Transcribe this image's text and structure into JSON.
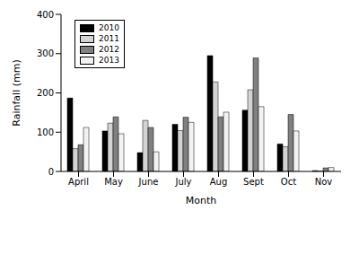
{
  "chart_data": {
    "type": "bar",
    "x_label": "Month",
    "y_label": "Rainfall (mm)",
    "categories": [
      "April",
      "May",
      "June",
      "July",
      "Aug",
      "Sept",
      "Oct",
      "Nov"
    ],
    "series": [
      {
        "name": "2010",
        "color": "#000000",
        "values": [
          187,
          103,
          48,
          120,
          295,
          156,
          70,
          2
        ]
      },
      {
        "name": "2011",
        "color": "#d3d3d3",
        "values": [
          58,
          123,
          130,
          104,
          228,
          208,
          63,
          1
        ]
      },
      {
        "name": "2012",
        "color": "#808080",
        "values": [
          68,
          139,
          112,
          138,
          139,
          289,
          145,
          9
        ]
      },
      {
        "name": "2013",
        "color": "#f2f2f2",
        "values": [
          112,
          96,
          50,
          125,
          151,
          165,
          103,
          10
        ]
      }
    ],
    "ylim": [
      0,
      400
    ],
    "yticks": [
      0,
      100,
      200,
      300,
      400
    ],
    "legend": "upper left",
    "grid": false
  }
}
